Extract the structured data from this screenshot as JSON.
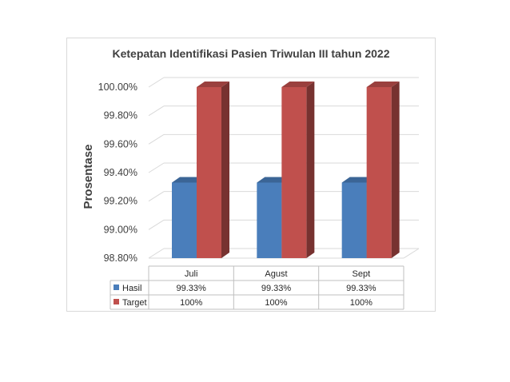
{
  "chart_data": {
    "type": "bar",
    "title": "Ketepatan Identifikasi Pasien Triwulan III tahun 2022",
    "ylabel": "Prosentase",
    "xlabel": "",
    "categories": [
      "Juli",
      "Agust",
      "Sept"
    ],
    "series": [
      {
        "name": "Hasil",
        "values": [
          99.33,
          99.33,
          99.33
        ],
        "labels": [
          "99.33%",
          "99.33%",
          "99.33%"
        ],
        "color": "#4a7ebb"
      },
      {
        "name": "Target",
        "values": [
          100,
          100,
          100
        ],
        "labels": [
          "100%",
          "100%",
          "100%"
        ],
        "color": "#c0504d"
      }
    ],
    "ylim": [
      98.8,
      100.0
    ],
    "yticks": [
      "98.80%",
      "99.00%",
      "99.20%",
      "99.40%",
      "99.60%",
      "99.80%",
      "100.00%"
    ],
    "grid": true,
    "legend": "data-table",
    "style": "3d-column"
  }
}
